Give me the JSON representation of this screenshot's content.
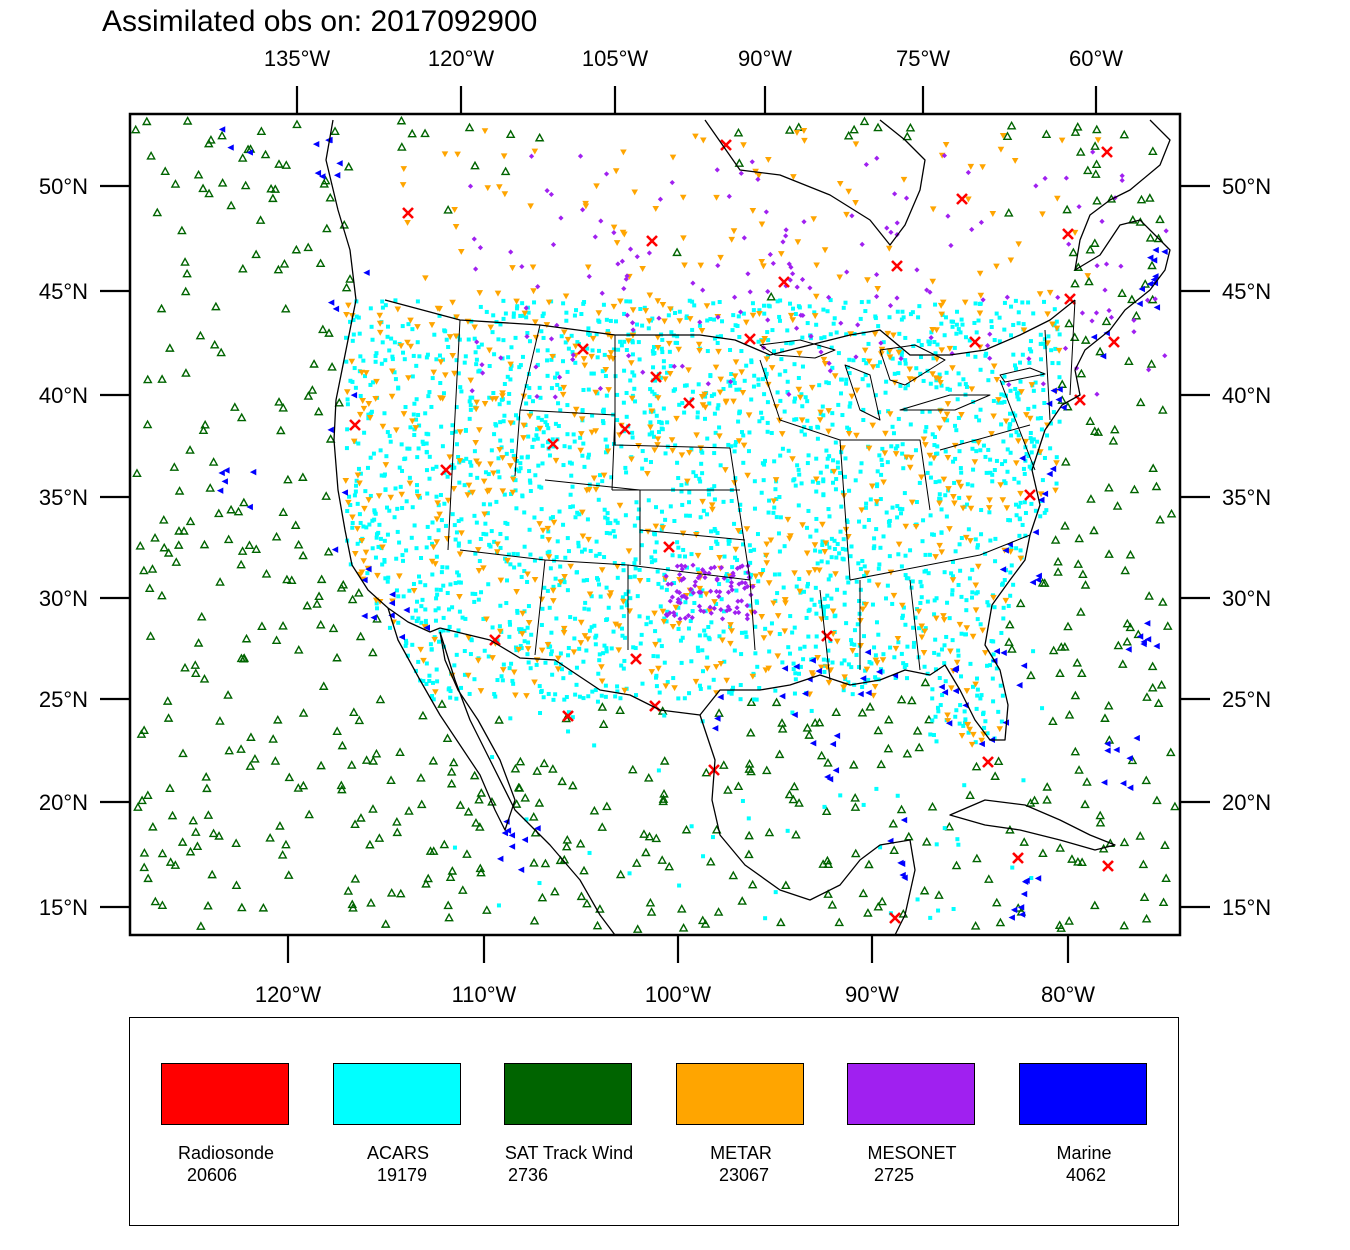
{
  "title": "Assimilated obs on: 2017092900",
  "axes": {
    "top_lon_labels": [
      "135°W",
      "120°W",
      "105°W",
      "90°W",
      "75°W",
      "60°W"
    ],
    "bottom_lon_labels": [
      "120°W",
      "110°W",
      "100°W",
      "90°W",
      "80°W"
    ],
    "lat_labels": [
      "50°N",
      "45°N",
      "40°N",
      "35°N",
      "30°N",
      "25°N",
      "20°N",
      "15°N"
    ]
  },
  "legend": [
    {
      "name": "Radiosonde",
      "count": "20606",
      "color": "#ff0000"
    },
    {
      "name": "ACARS",
      "count": "19179",
      "color": "#00ffff"
    },
    {
      "name": "SAT Track Wind",
      "count": "2736",
      "color": "#006400"
    },
    {
      "name": "METAR",
      "count": "23067",
      "color": "#ffa500"
    },
    {
      "name": "MESONET",
      "count": "2725",
      "color": "#a020f0"
    },
    {
      "name": "Marine",
      "count": "4062",
      "color": "#0000ff"
    }
  ],
  "map": {
    "projection": "lambert-conformal",
    "domain": "CONUS",
    "marker_shapes": {
      "Radiosonde": "x",
      "ACARS": "square",
      "SAT Track Wind": "triangle-up",
      "METAR": "triangle-down",
      "MESONET": "diamond",
      "Marine": "triangle-left"
    }
  }
}
